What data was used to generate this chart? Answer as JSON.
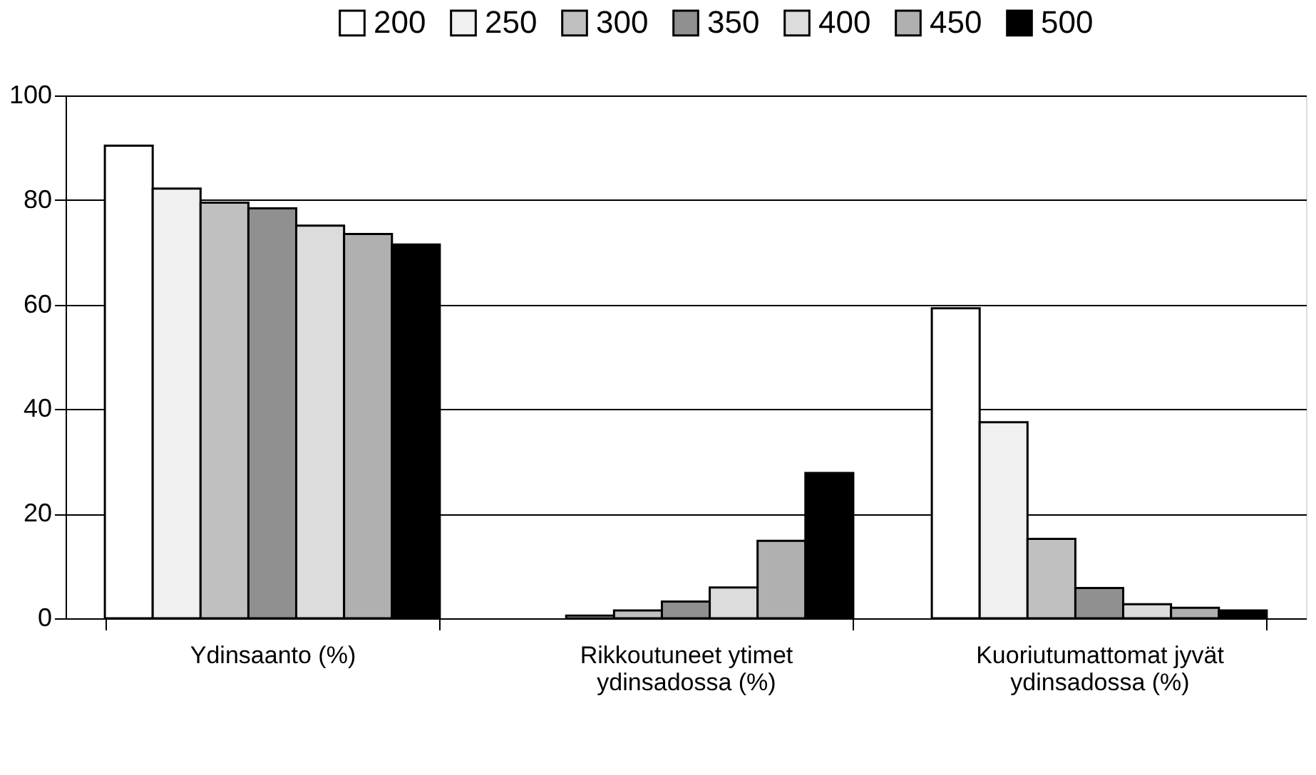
{
  "chart_data": {
    "type": "bar",
    "categories": [
      "Ydinsaanto (%)",
      "Rikkoutuneet ytimet ydinsadossa (%)",
      "Kuoriutumattomat jyvät ydinsadossa (%)"
    ],
    "series": [
      {
        "name": "200",
        "color": "#ffffff",
        "values": [
          90.4,
          null,
          59.3
        ]
      },
      {
        "name": "250",
        "color": "#f0f0f0",
        "values": [
          82.2,
          0.5,
          37.5
        ]
      },
      {
        "name": "300",
        "color": "#c0c0c0",
        "values": [
          79.5,
          1.5,
          15.2
        ]
      },
      {
        "name": "350",
        "color": "#909090",
        "values": [
          78.4,
          3.2,
          5.8
        ]
      },
      {
        "name": "400",
        "color": "#dcdcdc",
        "values": [
          75.1,
          5.9,
          2.7
        ]
      },
      {
        "name": "450",
        "color": "#b0b0b0",
        "values": [
          73.5,
          14.8,
          2.0
        ]
      },
      {
        "name": "500",
        "color": "#000000",
        "values": [
          71.5,
          27.8,
          1.5
        ]
      }
    ],
    "ylim": [
      0,
      100
    ],
    "yticks": [
      0,
      20,
      40,
      60,
      80,
      100
    ],
    "grid": "y",
    "legend": "top"
  }
}
